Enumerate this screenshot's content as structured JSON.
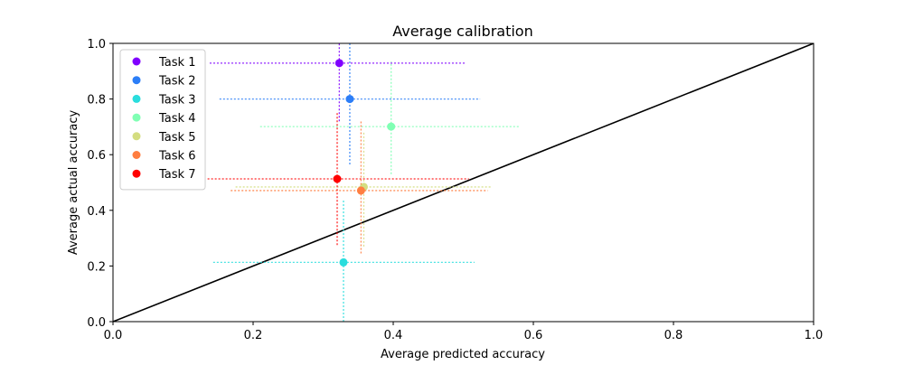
{
  "chart_data": {
    "type": "scatter",
    "title": "Average calibration",
    "xlabel": "Average predicted accuracy",
    "ylabel": "Average actual accuracy",
    "xlim": [
      0.0,
      1.0
    ],
    "ylim": [
      0.0,
      1.0
    ],
    "xticks": [
      "0.0",
      "0.2",
      "0.4",
      "0.6",
      "0.8",
      "1.0"
    ],
    "yticks": [
      "0.0",
      "0.2",
      "0.4",
      "0.6",
      "0.8",
      "1.0"
    ],
    "grid": false,
    "legend_position": "upper-left",
    "reference_line": {
      "from": [
        0,
        0
      ],
      "to": [
        1,
        1
      ],
      "color": "#000000"
    },
    "series": [
      {
        "name": "Task 1",
        "color": "#8000ff",
        "x": 0.323,
        "y": 0.929,
        "xerr": [
          0.138,
          0.504
        ],
        "yerr": [
          0.72,
          1.0
        ]
      },
      {
        "name": "Task 2",
        "color": "#2c7ef7",
        "x": 0.338,
        "y": 0.8,
        "xerr": [
          0.152,
          0.524
        ],
        "yerr": [
          0.565,
          1.0
        ]
      },
      {
        "name": "Task 3",
        "color": "#2adddd",
        "x": 0.329,
        "y": 0.213,
        "xerr": [
          0.143,
          0.516
        ],
        "yerr": [
          0.0,
          0.44
        ]
      },
      {
        "name": "Task 4",
        "color": "#80ffb4",
        "x": 0.397,
        "y": 0.701,
        "xerr": [
          0.21,
          0.58
        ],
        "yerr": [
          0.53,
          0.935
        ]
      },
      {
        "name": "Task 5",
        "color": "#d4dd80",
        "x": 0.358,
        "y": 0.484,
        "xerr": [
          0.175,
          0.54
        ],
        "yerr": [
          0.27,
          0.68
        ]
      },
      {
        "name": "Task 6",
        "color": "#ff7e41",
        "x": 0.354,
        "y": 0.471,
        "xerr": [
          0.168,
          0.535
        ],
        "yerr": [
          0.245,
          0.72
        ]
      },
      {
        "name": "Task 7",
        "color": "#ff0000",
        "x": 0.32,
        "y": 0.513,
        "xerr": [
          0.135,
          0.508
        ],
        "yerr": [
          0.275,
          0.75
        ]
      }
    ]
  }
}
